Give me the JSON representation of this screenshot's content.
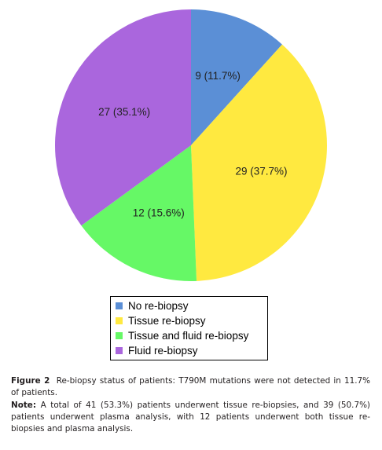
{
  "chart_data": {
    "type": "pie",
    "title": "",
    "slices": [
      {
        "name": "No re-biopsy",
        "value": 9,
        "label": "9 (11.7%)",
        "color": "#5b8fd6"
      },
      {
        "name": "Tissue re-biopsy",
        "value": 29,
        "label": "29 (37.7%)",
        "color": "#ffe940"
      },
      {
        "name": "Tissue and fluid re-biopsy",
        "value": 12,
        "label": "12 (15.6%)",
        "color": "#66f866"
      },
      {
        "name": "Fluid re-biopsy",
        "value": 27,
        "label": "27 (35.1%)",
        "color": "#aa66dd"
      }
    ],
    "start": "12 o'clock",
    "direction": "clockwise",
    "legend_position": "bottom"
  },
  "caption": {
    "figure_label": "Figure 2",
    "figure_text": "Re-biopsy status of patients: T790M mutations were not detected in 11.7% of patients.",
    "note_label": "Note:",
    "note_text": "A total of 41 (53.3%) patients underwent tissue re-biopsies, and 39 (50.7%) patients underwent plasma analysis, with 12 patients underwent both tissue re-biopsies and plasma analysis."
  }
}
